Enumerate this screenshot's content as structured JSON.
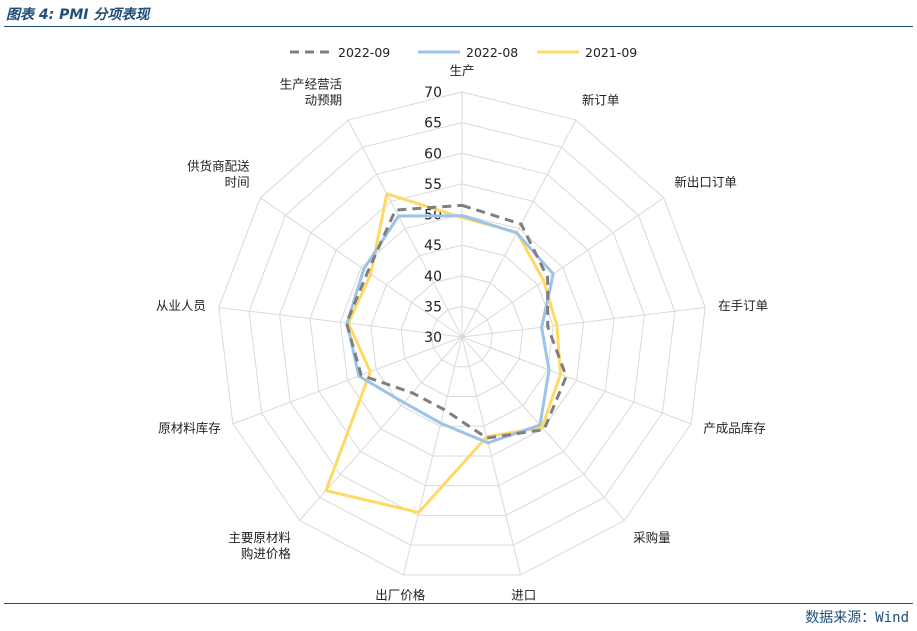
{
  "header": {
    "title": "图表 4: PMI 分项表现"
  },
  "footer": {
    "source": "数据来源：Wind"
  },
  "chart_data": {
    "type": "radar",
    "title": "",
    "categories": [
      "生产",
      "新订单",
      "新出口订单",
      "在手订单",
      "产成品库存",
      "采购量",
      "进口",
      "出厂价格",
      "主要原材料购进价格",
      "原材料库存",
      "从业人员",
      "供货商配送时间",
      "生产经营活动预期"
    ],
    "category_lines": [
      [
        "生产"
      ],
      [
        "新订单"
      ],
      [
        "新出口订单"
      ],
      [
        "在手订单"
      ],
      [
        "产成品库存"
      ],
      [
        "采购量"
      ],
      [
        "进口"
      ],
      [
        "出厂价格"
      ],
      [
        "主要原材料",
        "购进价格"
      ],
      [
        "原材料库存"
      ],
      [
        "从业人员"
      ],
      [
        "供货商配送",
        "时间"
      ],
      [
        "生产经营活",
        "动预期"
      ]
    ],
    "rlim": [
      30,
      70
    ],
    "ticks": [
      30,
      35,
      40,
      45,
      50,
      55,
      60,
      65,
      70
    ],
    "tick_labels": [
      "30",
      "35",
      "40",
      "45",
      "50",
      "55",
      "60",
      "65",
      "70"
    ],
    "legend_position": "top",
    "series": [
      {
        "name": "2022-09",
        "color": "#7f7f7f",
        "style": "dashed",
        "values": [
          51.5,
          50.8,
          47.0,
          44.1,
          48.2,
          50.2,
          47.0,
          42.2,
          42.2,
          47.6,
          49.0,
          48.7,
          53.4
        ]
      },
      {
        "name": "2022-08",
        "color": "#9dc3e6",
        "style": "solid",
        "values": [
          49.8,
          49.2,
          48.1,
          43.1,
          45.2,
          49.2,
          47.8,
          44.5,
          44.3,
          48.0,
          48.9,
          49.5,
          52.3
        ]
      },
      {
        "name": "2021-09",
        "color": "#ffd966",
        "style": "solid",
        "values": [
          49.5,
          49.3,
          46.2,
          45.6,
          47.2,
          49.7,
          46.8,
          59.5,
          63.5,
          46.0,
          48.7,
          48.1,
          56.4
        ]
      }
    ]
  }
}
